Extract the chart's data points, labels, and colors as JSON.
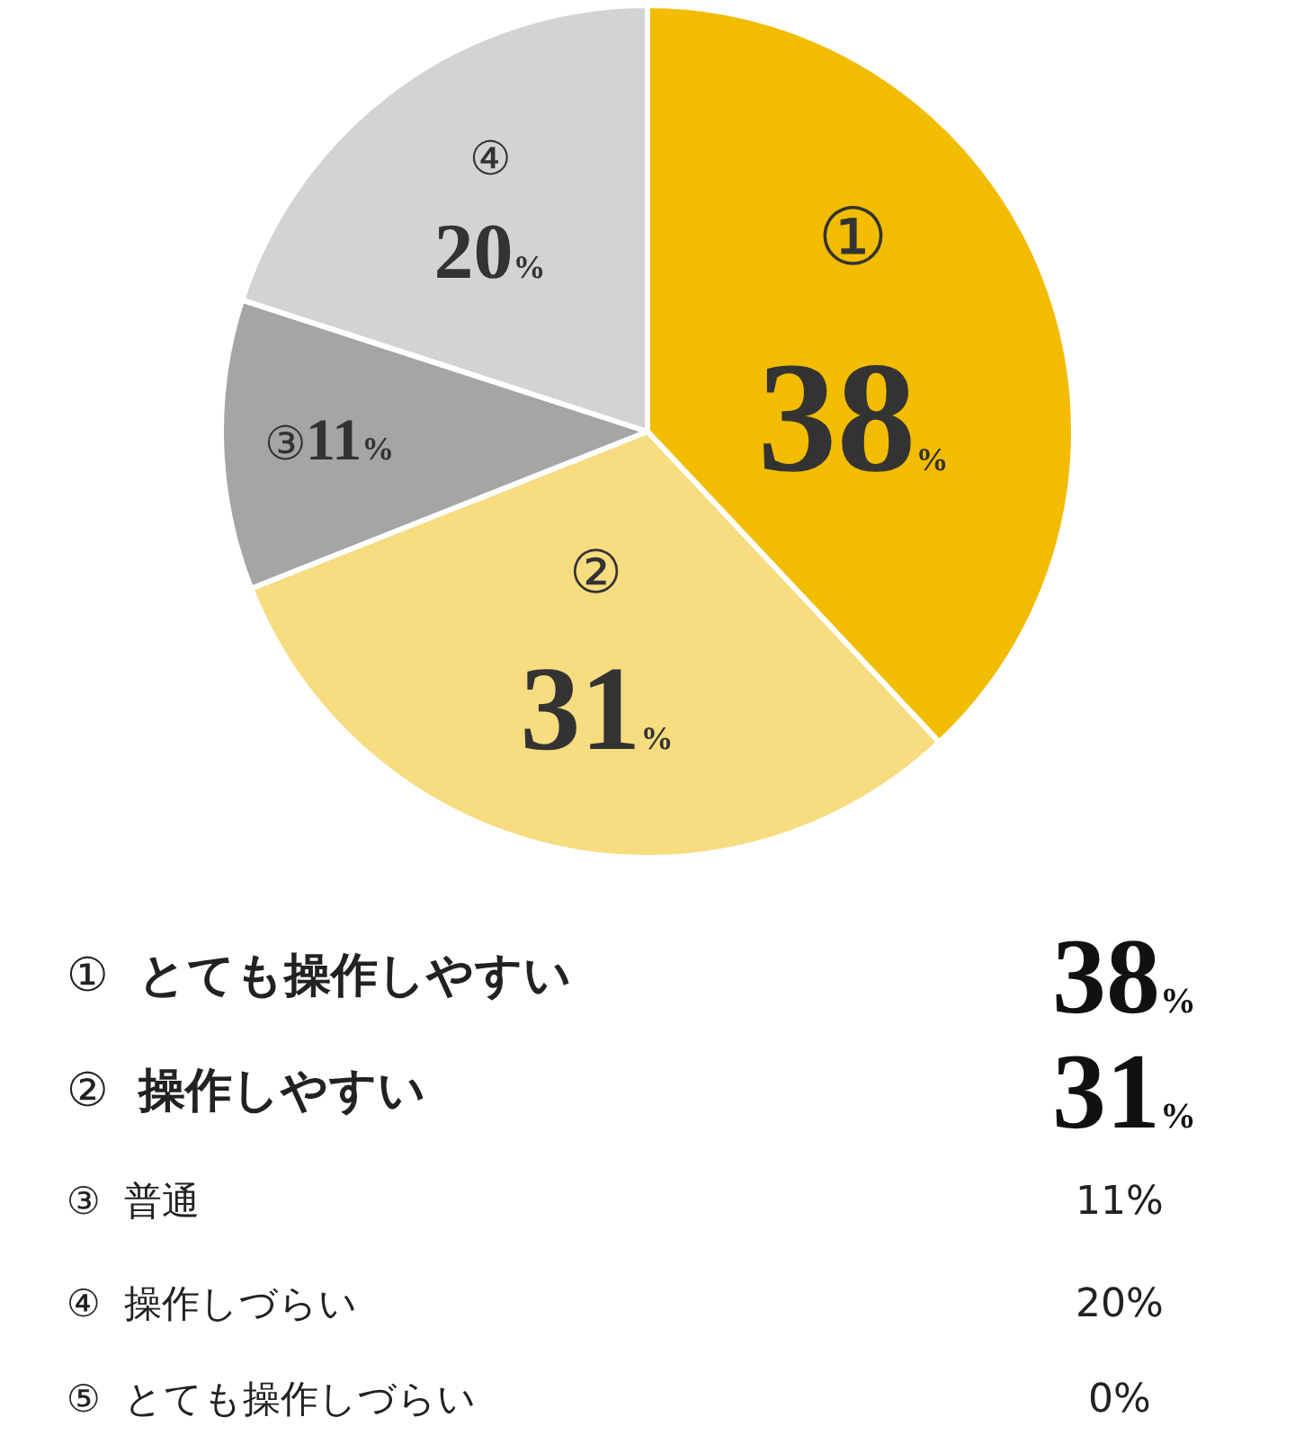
{
  "chart_data": {
    "type": "pie",
    "categories": [
      "①",
      "②",
      "③",
      "④",
      "⑤"
    ],
    "values": [
      38,
      31,
      11,
      20,
      0
    ],
    "colors": [
      "#f2bc00",
      "#f7dc80",
      "#a5a5a5",
      "#d3d3d3",
      "#eeeeee"
    ],
    "value_labels": [
      "38%",
      "31%",
      "11%",
      "20%",
      "0%"
    ],
    "annotations": [
      "とても操作しやすい",
      "操作しやすい",
      "普通",
      "操作しづらい",
      "とても操作しづらい"
    ],
    "legend": false
  }
}
